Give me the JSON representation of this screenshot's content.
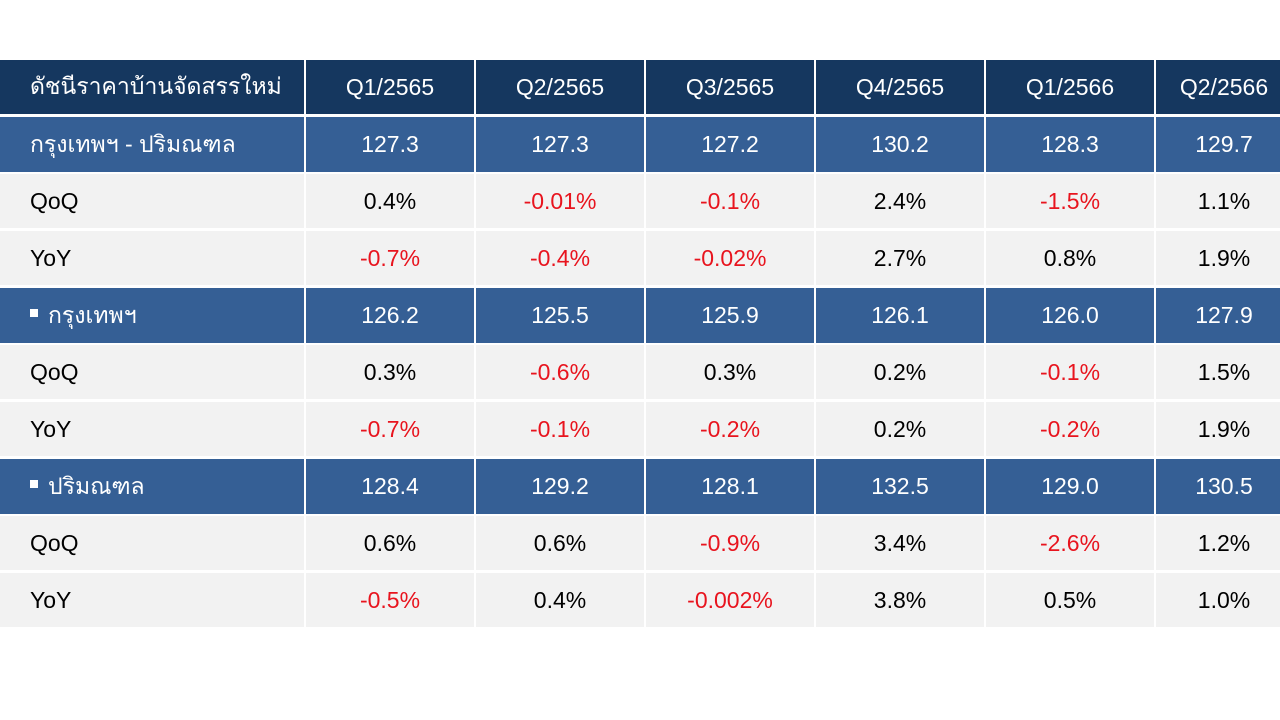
{
  "chart_data": {
    "type": "table",
    "title": "ดัชนีราคาบ้านจัดสรรใหม่",
    "columns": [
      "Q1/2565",
      "Q2/2565",
      "Q3/2565",
      "Q4/2565",
      "Q1/2566",
      "Q2/2566"
    ],
    "rows": [
      {
        "label": "กรุงเทพฯ - ปริมณฑล",
        "kind": "group",
        "bullet": false,
        "values": [
          "127.3",
          "127.3",
          "127.2",
          "130.2",
          "128.3",
          "129.7"
        ]
      },
      {
        "label": "QoQ",
        "kind": "sub",
        "values": [
          "0.4%",
          "-0.01%",
          "-0.1%",
          "2.4%",
          "-1.5%",
          "1.1%"
        ]
      },
      {
        "label": "YoY",
        "kind": "sub",
        "values": [
          "-0.7%",
          "-0.4%",
          "-0.02%",
          "2.7%",
          "0.8%",
          "1.9%"
        ]
      },
      {
        "label": "กรุงเทพฯ",
        "kind": "group",
        "bullet": true,
        "values": [
          "126.2",
          "125.5",
          "125.9",
          "126.1",
          "126.0",
          "127.9"
        ]
      },
      {
        "label": "QoQ",
        "kind": "sub",
        "values": [
          "0.3%",
          "-0.6%",
          "0.3%",
          "0.2%",
          "-0.1%",
          "1.5%"
        ]
      },
      {
        "label": "YoY",
        "kind": "sub",
        "values": [
          "-0.7%",
          "-0.1%",
          "-0.2%",
          "0.2%",
          "-0.2%",
          "1.9%"
        ]
      },
      {
        "label": "ปริมณฑล",
        "kind": "group",
        "bullet": true,
        "values": [
          "128.4",
          "129.2",
          "128.1",
          "132.5",
          "129.0",
          "130.5"
        ]
      },
      {
        "label": "QoQ",
        "kind": "sub",
        "values": [
          "0.6%",
          "0.6%",
          "-0.9%",
          "3.4%",
          "-2.6%",
          "1.2%"
        ]
      },
      {
        "label": "YoY",
        "kind": "sub",
        "values": [
          "-0.5%",
          "0.4%",
          "-0.002%",
          "3.8%",
          "0.5%",
          "1.0%"
        ]
      }
    ]
  },
  "colors": {
    "header_bg": "#15375f",
    "group_bg": "#355f95",
    "sub_bg": "#f2f2f2",
    "negative_text": "#e8141e",
    "positive_text": "#000000"
  }
}
